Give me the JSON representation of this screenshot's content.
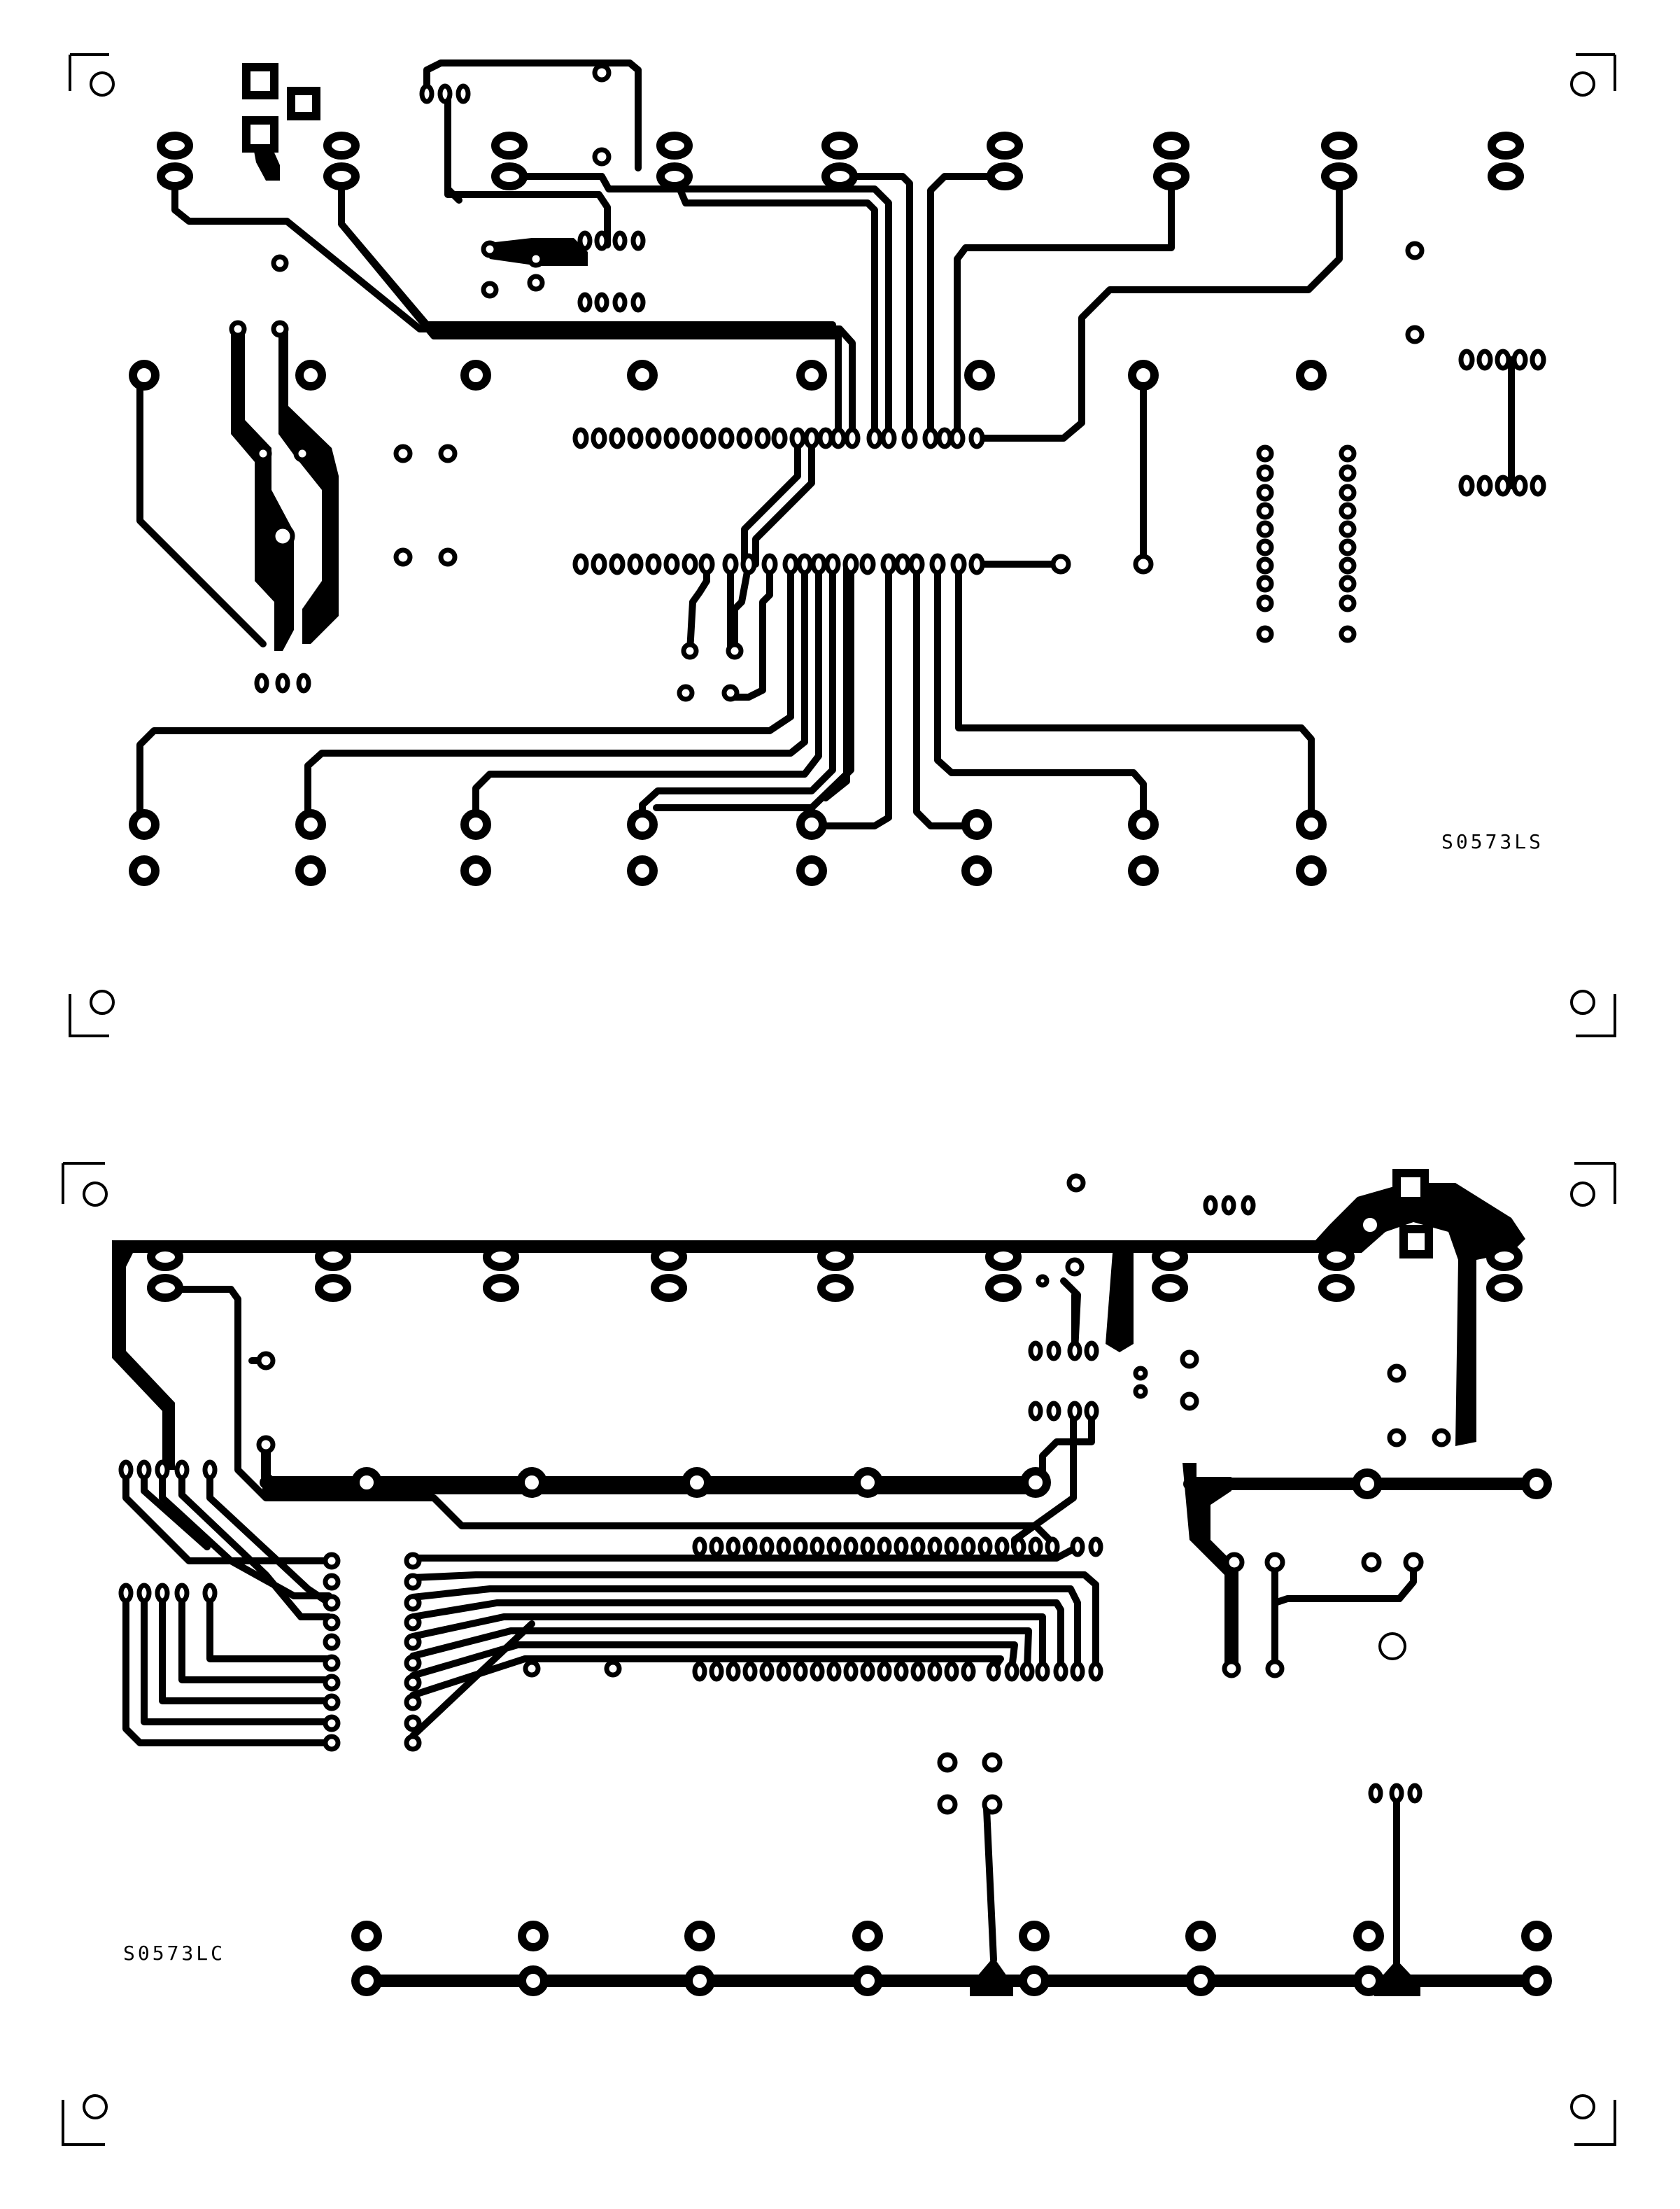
{
  "labels": {
    "top_layer": "S0573LS",
    "bottom_layer": "S0573LC"
  },
  "colors": {
    "copper": "#000000",
    "substrate": "#ffffff"
  }
}
